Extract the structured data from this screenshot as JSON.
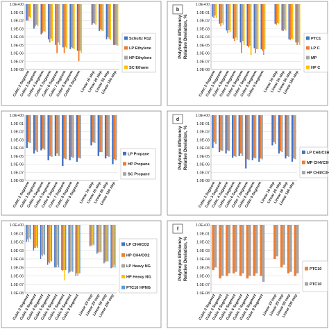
{
  "categories": [
    "Cubic 2 Segment",
    "Cubic 3 Segment",
    "Cubic 4 Segment",
    "Cubic 5 Segment",
    "Cubic 6 Segment",
    "Cubic 7 Segment",
    "Cubic 8 Segment",
    "Cubic 9 Segment",
    "Linear 10 step",
    "Linear 20 step",
    "Linear 50 step",
    "Linear 100 step"
  ],
  "colors": {
    "blue": "#4472c4",
    "orange": "#ed7d31",
    "gray": "#a5a5a5",
    "yellow": "#ffc000",
    "lightblue": "#5b9bd5"
  },
  "chart_data": [
    {
      "type": "bar",
      "panel_label": "",
      "ylabel": "",
      "yscale": "log",
      "ylim": [
        1e-08,
        1
      ],
      "yticks": [
        "1.0E+00",
        "1.0E-01",
        "1.0E-02",
        "1.0E-03",
        "1.0E-04",
        "1.0E-05",
        "1.0E-06",
        "1.0E-07",
        "1.0E-08"
      ],
      "categories": [
        "Cubic 2 Segment",
        "Cubic 3 Segment",
        "Cubic 4 Segment",
        "Cubic 5 Segment",
        "Cubic 6 Segment",
        "Cubic 7 Segment",
        "Cubic 8 Segment",
        "Cubic 9 Segment",
        "",
        "Linear 10 step",
        "Linear 20 step",
        "Linear 50 step",
        "Linear 100 step"
      ],
      "legend_position": "right",
      "series": [
        {
          "name": "Schultz R12",
          "color": "#4472c4",
          "values": [
            0.01,
            0.001,
            0.0002,
            5e-05,
            1e-05,
            5e-06,
            3e-06,
            2e-06,
            null,
            0.003,
            0.0005,
            5e-05,
            1e-05
          ]
        },
        {
          "name": "LP Ethylene",
          "color": "#ed7d31",
          "values": [
            0.01,
            0.002,
            0.0003,
            2e-05,
            1e-06,
            1e-06,
            5e-06,
            1e-07,
            null,
            0.005,
            0.0008,
            0.0001,
            1e-05
          ]
        },
        {
          "name": "HP Ethylene",
          "color": "#a5a5a5",
          "values": [
            0.03,
            0.003,
            0.0005,
            6e-05,
            2e-05,
            6e-06,
            4e-06,
            2e-06,
            null,
            0.004,
            0.0006,
            6e-05,
            1e-05
          ]
        },
        {
          "name": "SC Ethane",
          "color": "#ffc000",
          "values": [
            0.02,
            0.002,
            0.0004,
            3e-05,
            1e-05,
            4e-06,
            3e-06,
            1e-06,
            null,
            0.003,
            0.0005,
            4e-05,
            8e-06
          ]
        }
      ]
    },
    {
      "type": "bar",
      "panel_label": "b",
      "ylabel": "Polytropic Efficiency Relative Deviation, %",
      "yscale": "log",
      "ylim": [
        1e-08,
        1
      ],
      "yticks": [
        "1.0E+00",
        "1.0E-01",
        "1.0E-02",
        "1.0E-03",
        "1.0E-04",
        "1.0E-05",
        "1.0E-06",
        "1.0E-07",
        "1.0E-08"
      ],
      "categories": [
        "Cubic 2 Segment",
        "Cubic 3 Segment",
        "Cubic 4 Segment",
        "Cubic 5 Segment",
        "Cubic 6 Segment",
        "Cubic 7 Segment",
        "Cubic 8 Segment",
        "Cubic 9 Segment",
        "",
        "Linear 10 step",
        "Linear 20 step",
        "Linear 50 step",
        "Linear 100 step"
      ],
      "legend_position": "right",
      "series": [
        {
          "name": "PTC1",
          "color": "#4472c4",
          "values": [
            0.03,
            0.004,
            0.0006,
            6e-05,
            2e-05,
            8e-06,
            4e-06,
            3e-06,
            null,
            0.004,
            0.0006,
            5e-05,
            2e-05
          ]
        },
        {
          "name": "LP C",
          "color": "#ed7d31",
          "values": [
            0.02,
            0.002,
            0.0003,
            3e-05,
            1e-06,
            5e-06,
            1e-06,
            2e-06,
            null,
            0.003,
            0.0005,
            4e-05,
            1e-05
          ]
        },
        {
          "name": "MP",
          "color": "#a5a5a5",
          "values": [
            0.04,
            0.005,
            0.0007,
            8e-05,
            3e-05,
            8e-06,
            3e-06,
            6e-07,
            null,
            0.005,
            0.0008,
            6e-05,
            2e-05
          ]
        },
        {
          "name": "HP C",
          "color": "#ffc000",
          "values": [
            0.02,
            0.003,
            0.0004,
            4e-05,
            1e-05,
            6e-07,
            3e-06,
            3e-06,
            null,
            0.004,
            0.0006,
            5e-05,
            1e-05
          ]
        }
      ]
    },
    {
      "type": "bar",
      "panel_label": "",
      "ylabel": "",
      "yscale": "log",
      "ylim": [
        1e-08,
        1
      ],
      "yticks": [
        "1.0E+00",
        "1.0E-01",
        "1.0E-02",
        "1.0E-03",
        "1.0E-04",
        "1.0E-05",
        "1.0E-06",
        "1.0E-07",
        "1.0E-08"
      ],
      "categories": [
        "Cubic 2 Segment",
        "Cubic 3 Segment",
        "Cubic 4 Segment",
        "Cubic 5 Segment",
        "Cubic 6 Segment",
        "Cubic 7 Segment",
        "Cubic 8 Segment",
        "Cubic 9 Segment",
        "",
        "Linear 10 step",
        "Linear 20 step",
        "Linear 50 step",
        "Linear 100 step"
      ],
      "legend_position": "right",
      "series": [
        {
          "name": "LP Propane",
          "color": "#4472c4",
          "values": [
            0.0001,
            2e-05,
            5e-05,
            3e-06,
            1e-05,
            6e-07,
            3e-06,
            2e-06,
            null,
            0.0002,
            1e-05,
            5e-06,
            1e-06
          ]
        },
        {
          "name": "HP Propane",
          "color": "#ed7d31",
          "values": [
            0.0005,
            5e-05,
            8e-05,
            1e-05,
            2e-05,
            5e-06,
            8e-06,
            6e-06,
            null,
            0.0005,
            3e-05,
            1e-05,
            4e-06
          ]
        },
        {
          "name": "SC Propane",
          "color": "#a5a5a5",
          "values": [
            0.0004,
            3e-05,
            6e-05,
            8e-06,
            1e-05,
            4e-06,
            6e-06,
            5e-06,
            null,
            0.0004,
            3e-05,
            8e-06,
            3e-06
          ]
        }
      ]
    },
    {
      "type": "bar",
      "panel_label": "d",
      "ylabel": "Polytropic Efficiency Relative Deviation, %",
      "yscale": "log",
      "ylim": [
        1e-08,
        1
      ],
      "yticks": [
        "1.0E+00",
        "1.0E-01",
        "1.0E-02",
        "1.0E-03",
        "1.0E-04",
        "1.0E-05",
        "1.0E-06",
        "1.0E-07",
        "1.0E-08"
      ],
      "categories": [
        "Cubic 2 Segment",
        "Cubic 3 Segment",
        "Cubic 4 Segment",
        "Cubic 5 Segment",
        "Cubic 6 Segment",
        "Cubic 7 Segment",
        "Cubic 8 Segment",
        "Cubic 9 Segment",
        "",
        "Linear 10 step",
        "Linear 20 step",
        "Linear 50 step",
        "Linear 100 step"
      ],
      "legend_position": "right",
      "series": [
        {
          "name": "LP CH4/C3H",
          "color": "#4472c4",
          "values": [
            0.0001,
            3e-05,
            2e-05,
            6e-06,
            1e-05,
            3e-07,
            3e-06,
            2e-06,
            null,
            0.0002,
            2e-05,
            5e-06,
            2e-06
          ]
        },
        {
          "name": "MP CH4/C3H",
          "color": "#ed7d31",
          "values": [
            0.0005,
            5e-05,
            5e-05,
            1e-05,
            2e-05,
            4e-06,
            6e-06,
            5e-06,
            null,
            0.0005,
            4e-05,
            1e-05,
            5e-06
          ]
        },
        {
          "name": "HP CH4/C3H",
          "color": "#a5a5a5",
          "values": [
            0.0003,
            4e-05,
            4e-05,
            8e-06,
            1e-05,
            3e-06,
            5e-06,
            4e-06,
            null,
            0.0003,
            3e-05,
            8e-06,
            4e-06
          ]
        }
      ]
    },
    {
      "type": "bar",
      "panel_label": "",
      "ylabel": "",
      "yscale": "log",
      "ylim": [
        1e-08,
        1
      ],
      "yticks": [
        "1.0E+00",
        "1.0E-01",
        "1.0E-02",
        "1.0E-03",
        "1.0E-04",
        "1.0E-05",
        "1.0E-06",
        "1.0E-07",
        "1.0E-08"
      ],
      "categories": [
        "Cubic 2 Segment",
        "Cubic 3 Segment",
        "Cubic 4 Segment",
        "Cubic 5 Segment",
        "Cubic 6 Segment",
        "Cubic 7 Segment",
        "Cubic 8 Segment",
        "Cubic 9 Segment",
        "",
        "Linear 10 step",
        "Linear 20 step",
        "Linear 50 step",
        "Linear 100 step"
      ],
      "legend_position": "right",
      "series": [
        {
          "name": "LP CH4/CO2",
          "color": "#4472c4",
          "values": [
            0.01,
            0.001,
            0.0001,
            2e-05,
            1e-05,
            5e-06,
            2e-06,
            1e-06,
            null,
            0.003,
            0.0004,
            3e-05,
            8e-06
          ]
        },
        {
          "name": "HP CH4/CO2",
          "color": "#ed7d31",
          "values": [
            0.02,
            0.002,
            0.0003,
            4e-05,
            1e-05,
            4e-06,
            3e-06,
            2e-06,
            null,
            0.004,
            0.0006,
            5e-05,
            1e-05
          ]
        },
        {
          "name": "LP Heavy NG",
          "color": "#a5a5a5",
          "values": [
            0.01,
            0.002,
            0.0002,
            3e-05,
            1e-05,
            5e-06,
            3e-06,
            1e-06,
            null,
            0.003,
            0.0005,
            4e-05,
            1e-05
          ]
        },
        {
          "name": "HP Heavy NG",
          "color": "#ffc000",
          "values": [
            0.03,
            0.003,
            0.0004,
            6e-05,
            2e-05,
            3e-07,
            4e-06,
            2e-06,
            null,
            0.005,
            0.0007,
            6e-05,
            2e-05
          ]
        },
        {
          "name": "PTC10 HPNG",
          "color": "#5b9bd5",
          "values": [
            0.02,
            0.002,
            0.0003,
            5e-05,
            1e-05,
            5e-06,
            3e-06,
            2e-06,
            null,
            0.004,
            0.0006,
            5e-05,
            1e-05
          ]
        }
      ]
    },
    {
      "type": "bar",
      "panel_label": "f",
      "ylabel": "Polytropic Efficiency Relative Deviation, %",
      "yscale": "log",
      "ylim": [
        1e-08,
        1
      ],
      "yticks": [
        "1.0E+00",
        "1.0E-01",
        "1.0E-02",
        "1.0E-03",
        "1.0E-04",
        "1.0E-05",
        "1.0E-06",
        "1.0E-07",
        "1.0E-08"
      ],
      "categories": [
        "Cubic 2 Segment",
        "Cubic 3 Segment",
        "Cubic 4 Segment",
        "Cubic 5 Segment",
        "Cubic 6 Segment",
        "Cubic 7 Segment",
        "Cubic 8 Segment",
        "Cubic 9 Segment",
        "",
        "Linear 10 step",
        "Linear 20 step",
        "Linear 50 step",
        "Linear 100 step"
      ],
      "legend_position": "right",
      "series": [
        {
          "name": "PTC10",
          "color": "#ed7d31",
          "values": [
            5e-06,
            5e-07,
            1e-06,
            2e-06,
            1e-06,
            5e-07,
            1e-06,
            1e-06,
            null,
            0.0001,
            1e-05,
            2e-06,
            1e-06
          ]
        },
        {
          "name": "PTC10",
          "color": "#a5a5a5",
          "values": [
            1e-05,
            1e-06,
            2e-06,
            3e-06,
            2e-06,
            1e-06,
            2e-06,
            2e-07,
            null,
            0.0002,
            2e-05,
            3e-06,
            2e-06
          ]
        }
      ]
    }
  ]
}
